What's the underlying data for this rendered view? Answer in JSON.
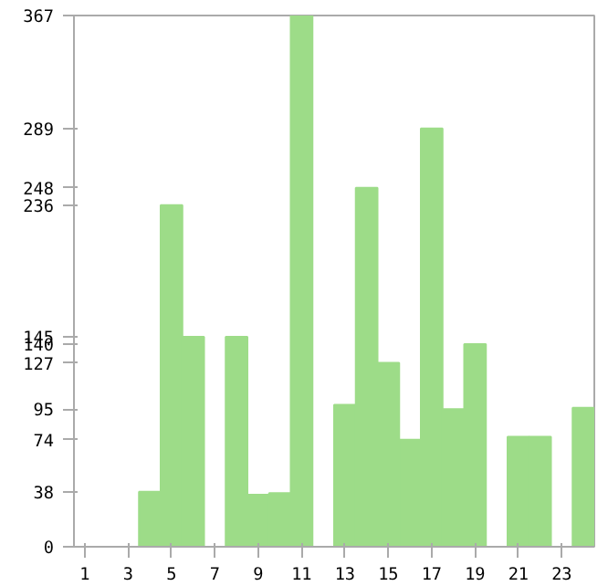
{
  "chart_data": {
    "type": "bar",
    "x": [
      1,
      2,
      3,
      4,
      5,
      6,
      7,
      8,
      9,
      10,
      11,
      12,
      13,
      14,
      15,
      16,
      17,
      18,
      19,
      20,
      21,
      22,
      23,
      24
    ],
    "values": [
      0,
      0,
      0,
      38,
      236,
      145,
      0,
      145,
      36,
      37,
      367,
      0,
      98,
      248,
      127,
      74,
      289,
      95,
      140,
      0,
      76,
      76,
      0,
      96
    ],
    "color": "#9ddc88",
    "xlim": [
      0.5,
      24.5
    ],
    "xticks": [
      1,
      3,
      5,
      7,
      9,
      11,
      13,
      15,
      17,
      19,
      21,
      23
    ],
    "ylim": [
      0,
      367
    ],
    "yticks": [
      0,
      38,
      74,
      95,
      127,
      140,
      145,
      236,
      248,
      289,
      367
    ],
    "grid": false
  }
}
